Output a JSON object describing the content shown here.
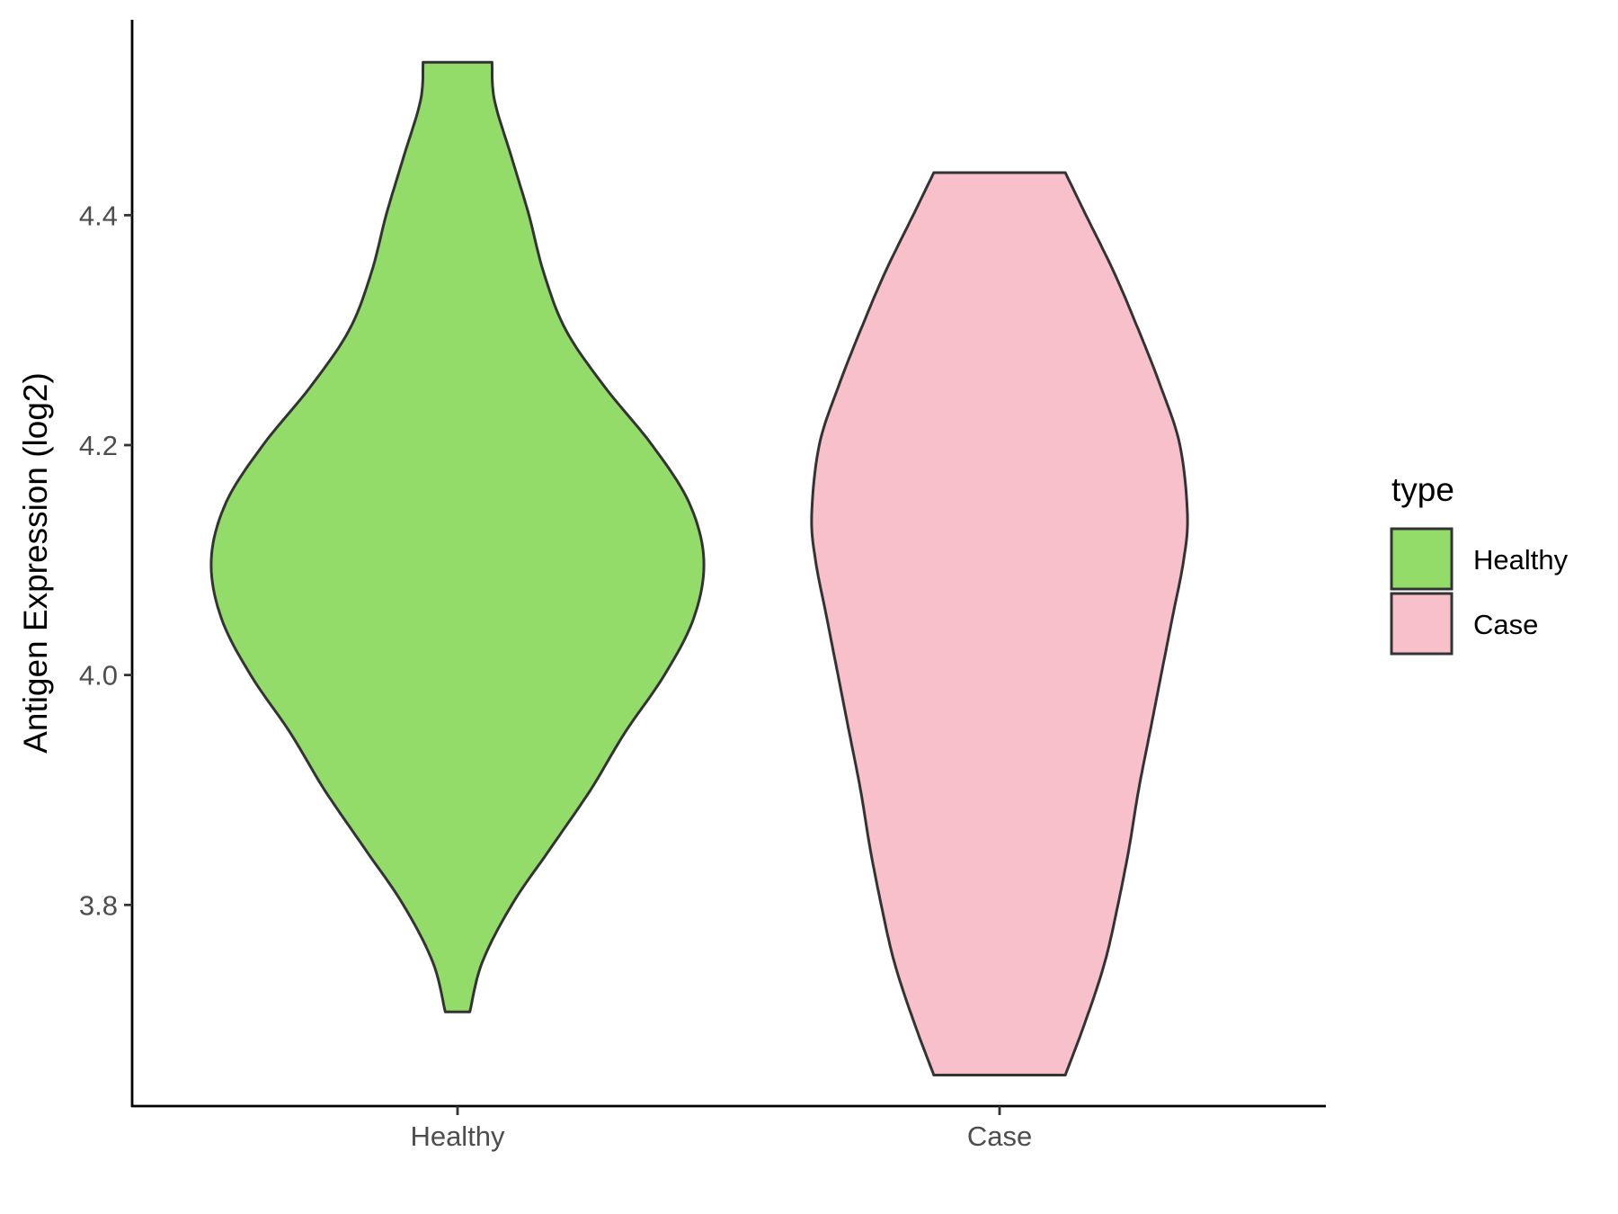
{
  "chart_data": {
    "type": "violin",
    "title": "",
    "xlabel": "",
    "ylabel": "Antigen Expression (log2)",
    "ylim": [
      3.625,
      4.57
    ],
    "yticks": [
      3.8,
      4.0,
      4.2,
      4.4
    ],
    "ytick_labels": [
      "3.8",
      "4.0",
      "4.2",
      "4.4"
    ],
    "categories": [
      "Healthy",
      "Case"
    ],
    "grid": false,
    "legend": {
      "title": "type",
      "position": "right",
      "entries": [
        {
          "label": "Healthy",
          "color": "#93dc6a"
        },
        {
          "label": "Case",
          "color": "#f8c0cb"
        }
      ]
    },
    "series": [
      {
        "name": "Healthy",
        "color": "#93dc6a",
        "y_min": 3.707,
        "y_max": 4.533,
        "density": [
          [
            3.707,
            0.05
          ],
          [
            3.75,
            0.1
          ],
          [
            3.8,
            0.22
          ],
          [
            3.85,
            0.38
          ],
          [
            3.9,
            0.54
          ],
          [
            3.95,
            0.68
          ],
          [
            4.0,
            0.84
          ],
          [
            4.05,
            0.96
          ],
          [
            4.1,
            1.0
          ],
          [
            4.15,
            0.94
          ],
          [
            4.2,
            0.79
          ],
          [
            4.25,
            0.6
          ],
          [
            4.3,
            0.44
          ],
          [
            4.35,
            0.35
          ],
          [
            4.4,
            0.29
          ],
          [
            4.45,
            0.22
          ],
          [
            4.5,
            0.15
          ],
          [
            4.533,
            0.14
          ]
        ]
      },
      {
        "name": "Case",
        "color": "#f8c0cb",
        "y_min": 3.652,
        "y_max": 4.437,
        "density": [
          [
            3.652,
            0.35
          ],
          [
            3.7,
            0.46
          ],
          [
            3.75,
            0.56
          ],
          [
            3.8,
            0.63
          ],
          [
            3.85,
            0.69
          ],
          [
            3.9,
            0.74
          ],
          [
            3.95,
            0.8
          ],
          [
            4.0,
            0.86
          ],
          [
            4.05,
            0.92
          ],
          [
            4.1,
            0.98
          ],
          [
            4.14,
            1.0
          ],
          [
            4.2,
            0.96
          ],
          [
            4.25,
            0.86
          ],
          [
            4.3,
            0.74
          ],
          [
            4.35,
            0.61
          ],
          [
            4.4,
            0.46
          ],
          [
            4.437,
            0.35
          ]
        ]
      }
    ]
  }
}
